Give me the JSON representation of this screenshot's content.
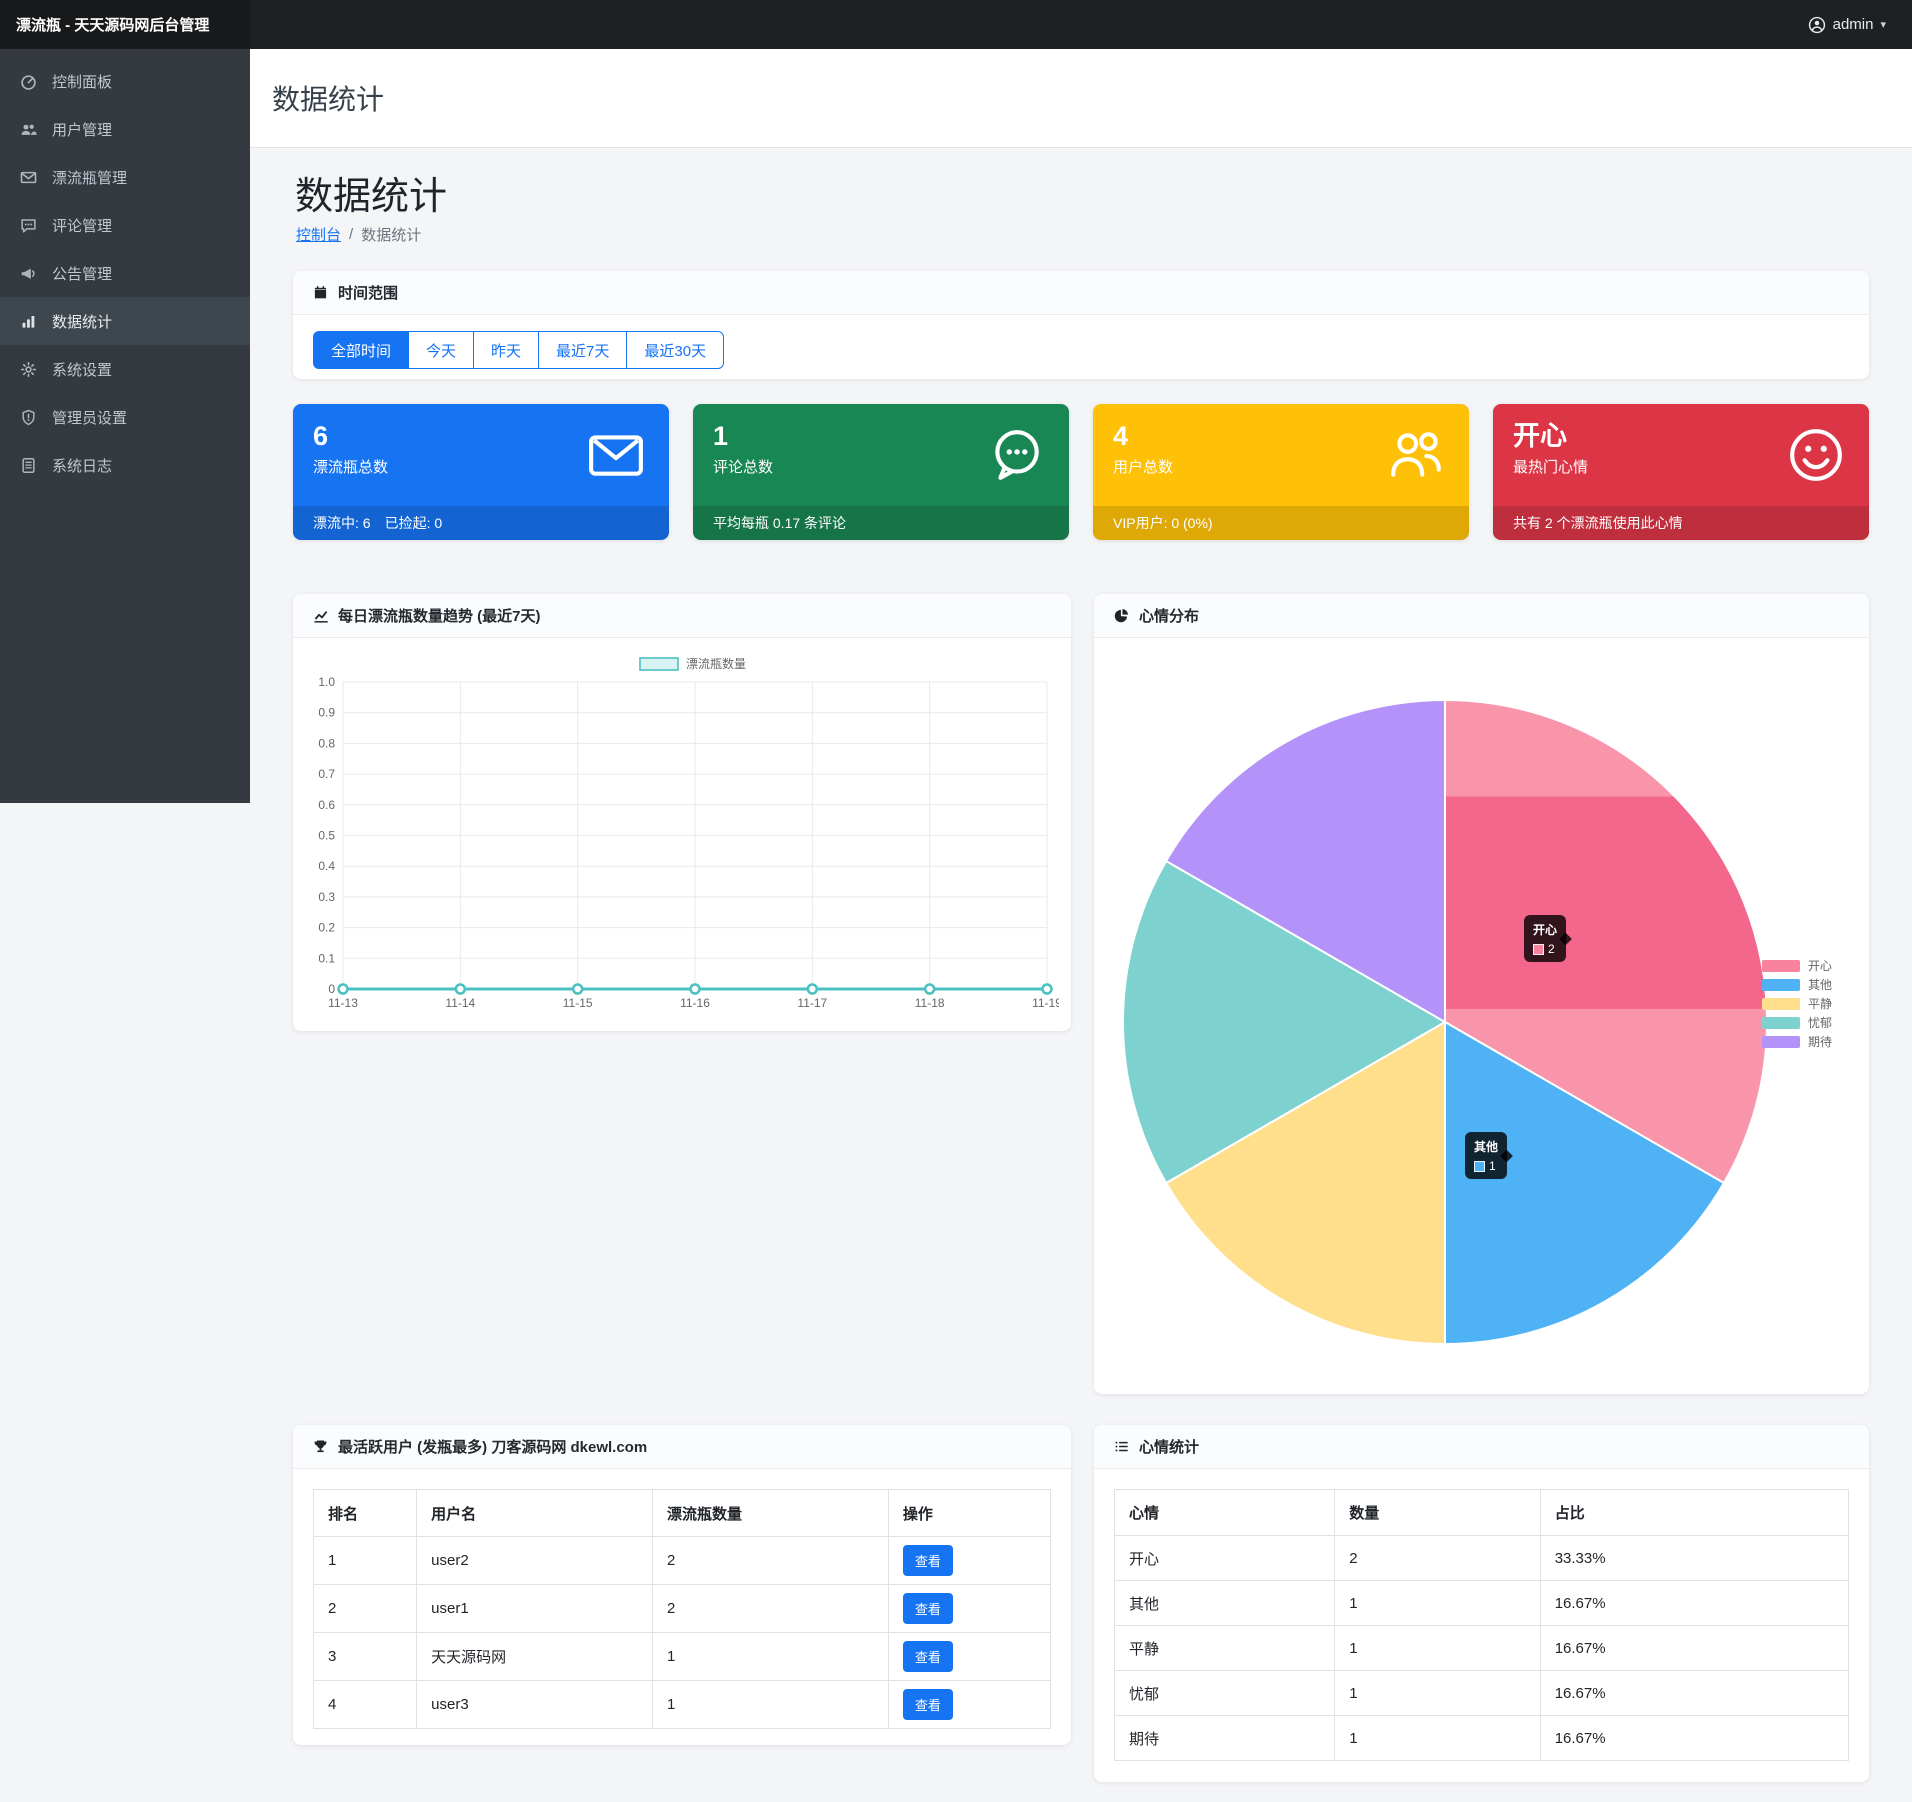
{
  "navbar": {
    "brand": "漂流瓶 - 天天源码网后台管理",
    "user": "admin"
  },
  "sidebar": {
    "items": [
      {
        "icon": "speedometer-icon",
        "label": "控制面板",
        "active": false
      },
      {
        "icon": "users-icon",
        "label": "用户管理",
        "active": false
      },
      {
        "icon": "envelope-icon",
        "label": "漂流瓶管理",
        "active": false
      },
      {
        "icon": "comment-icon",
        "label": "评论管理",
        "active": false
      },
      {
        "icon": "megaphone-icon",
        "label": "公告管理",
        "active": false
      },
      {
        "icon": "bar-chart-icon",
        "label": "数据统计",
        "active": true
      },
      {
        "icon": "gear-icon",
        "label": "系统设置",
        "active": false
      },
      {
        "icon": "shield-icon",
        "label": "管理员设置",
        "active": false
      },
      {
        "icon": "journal-icon",
        "label": "系统日志",
        "active": false
      }
    ]
  },
  "header": {
    "title": "数据统计"
  },
  "page": {
    "title": "数据统计",
    "breadcrumb": {
      "home": "控制台",
      "sep": "/",
      "current": "数据统计"
    }
  },
  "time_range": {
    "title": "时间范围",
    "buttons": [
      {
        "label": "全部时间",
        "active": true
      },
      {
        "label": "今天",
        "active": false
      },
      {
        "label": "昨天",
        "active": false
      },
      {
        "label": "最近7天",
        "active": false
      },
      {
        "label": "最近30天",
        "active": false
      }
    ]
  },
  "stats": [
    {
      "value": "6",
      "label": "漂流瓶总数",
      "footer": "漂流中: 6　已捡起: 0",
      "color": "#1673f2",
      "icon": "envelope-icon"
    },
    {
      "value": "1",
      "label": "评论总数",
      "footer": "平均每瓶 0.17 条评论",
      "color": "#198754",
      "icon": "chat-dots-icon"
    },
    {
      "value": "4",
      "label": "用户总数",
      "footer": "VIP用户: 0 (0%)",
      "color": "#ffc107",
      "icon": "people-icon"
    },
    {
      "value": "开心",
      "label": "最热门心情",
      "footer": "共有 2 个漂流瓶使用此心情",
      "color": "#dc3545",
      "icon": "smiley-icon"
    }
  ],
  "chart_data": [
    {
      "type": "line",
      "title": "每日漂流瓶数量趋势 (最近7天)",
      "series": [
        {
          "name": "漂流瓶数量",
          "values": [
            0,
            0,
            0,
            0,
            0,
            0,
            0
          ]
        }
      ],
      "x": [
        "11-13",
        "11-14",
        "11-15",
        "11-16",
        "11-17",
        "11-18",
        "11-19"
      ],
      "ylim": [
        0,
        1.0
      ],
      "ytick_step": 0.1,
      "grid": true,
      "legend_position": "top",
      "line_color": "#4bc0c0",
      "fill_color": "#d9f2f2"
    },
    {
      "type": "pie",
      "title": "心情分布",
      "categories": [
        "开心",
        "其他",
        "平静",
        "忧郁",
        "期待"
      ],
      "values": [
        2,
        1,
        1,
        1,
        1
      ],
      "colors": [
        "#F9829E",
        "#4FB2F5",
        "#FFDE8C",
        "#7DD1CE",
        "#B392F9"
      ],
      "highlight": {
        "slice": "开心",
        "light": "#F995AB",
        "dark": "#F4678C",
        "band": [
          0.15,
          0.48
        ]
      },
      "legend_position": "right",
      "tooltips": [
        {
          "label": "开心",
          "value": 2
        },
        {
          "label": "其他",
          "value": 1
        }
      ]
    }
  ],
  "tables": {
    "active_users": {
      "title": "最活跃用户 (发瓶最多) 刀客源码网 dkewl.com",
      "columns": [
        "排名",
        "用户名",
        "漂流瓶数量",
        "操作"
      ],
      "action_label": "查看",
      "rows": [
        [
          "1",
          "user2",
          "2"
        ],
        [
          "2",
          "user1",
          "2"
        ],
        [
          "3",
          "天天源码网",
          "1"
        ],
        [
          "4",
          "user3",
          "1"
        ]
      ]
    },
    "mood_stats": {
      "title": "心情统计",
      "columns": [
        "心情",
        "数量",
        "占比"
      ],
      "rows": [
        [
          "开心",
          "2",
          "33.33%"
        ],
        [
          "其他",
          "1",
          "16.67%"
        ],
        [
          "平静",
          "1",
          "16.67%"
        ],
        [
          "忧郁",
          "1",
          "16.67%"
        ],
        [
          "期待",
          "1",
          "16.67%"
        ]
      ]
    }
  }
}
